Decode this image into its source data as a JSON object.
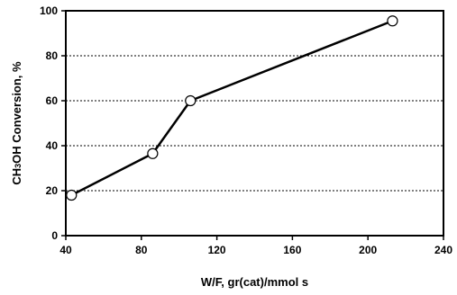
{
  "chart_data": {
    "type": "line",
    "title": "",
    "xlabel": "W/F, gr(cat)/mmol s",
    "ylabel": {
      "prefix": "CH",
      "subscript": "3",
      "suffix": "OH Conversion, %"
    },
    "xlim": [
      40,
      240
    ],
    "ylim": [
      0,
      100
    ],
    "x_ticks": [
      40,
      80,
      120,
      160,
      200,
      240
    ],
    "y_ticks": [
      0,
      20,
      40,
      60,
      80,
      100
    ],
    "grid": "horizontal dotted",
    "series": [
      {
        "x": [
          43,
          86,
          106,
          213
        ],
        "y": [
          18,
          36.5,
          60,
          95.5
        ],
        "marker": "open-circle",
        "color": "#000000"
      }
    ]
  }
}
